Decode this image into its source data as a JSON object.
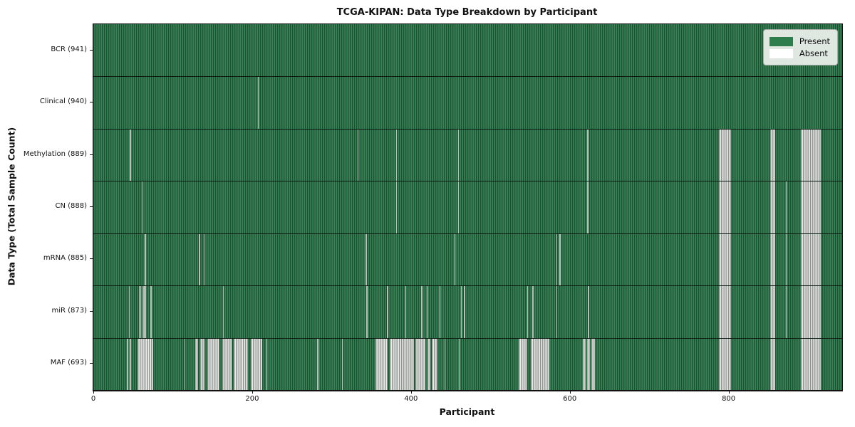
{
  "title": "TCGA-KIPAN: Data Type Breakdown by Participant",
  "colors": {
    "present_green": "#2e7d4c",
    "present_dark_edge": "#1f4e32",
    "absent_white": "#ffffff",
    "absent_gray": "#b4b8b4",
    "legend_background": "#e9eee9",
    "axis_line": "#111111"
  },
  "legend": {
    "present_label": "Present",
    "absent_label": "Absent"
  },
  "chart_data": {
    "type": "heatmap",
    "title": "TCGA-KIPAN: Data Type Breakdown by Participant",
    "xlabel": "Participant",
    "ylabel": "Data Type (Total Sample Count)",
    "legend": [
      "Present",
      "Absent"
    ],
    "legend_position": "upper right",
    "x_range": [
      0,
      943
    ],
    "x_ticks": [
      0,
      200,
      400,
      600,
      800
    ],
    "n_participants": 941,
    "value_encoding": {
      "present": "green",
      "absent": "white"
    },
    "rows": [
      {
        "name": "bcr",
        "label": "BCR (941)",
        "data_type": "BCR",
        "present_count": 941,
        "absent_ranges": []
      },
      {
        "name": "clinical",
        "label": "Clinical (940)",
        "data_type": "Clinical",
        "present_count": 940,
        "absent_ranges": [
          [
            207,
            208
          ]
        ]
      },
      {
        "name": "methylation",
        "label": "Methylation (889)",
        "data_type": "Methylation",
        "present_count": 889,
        "absent_ranges": [
          [
            46,
            47
          ],
          [
            333,
            334
          ],
          [
            381,
            382
          ],
          [
            459,
            460
          ],
          [
            622,
            623
          ],
          [
            788,
            803
          ],
          [
            852,
            859
          ],
          [
            891,
            916
          ]
        ]
      },
      {
        "name": "cn",
        "label": "CN (888)",
        "data_type": "CN",
        "present_count": 888,
        "absent_ranges": [
          [
            61,
            62
          ],
          [
            381,
            382
          ],
          [
            459,
            460
          ],
          [
            622,
            623
          ],
          [
            788,
            803
          ],
          [
            852,
            859
          ],
          [
            872,
            873
          ],
          [
            891,
            916
          ]
        ]
      },
      {
        "name": "mrna",
        "label": "mRNA (885)",
        "data_type": "mRNA",
        "present_count": 885,
        "absent_ranges": [
          [
            65,
            66
          ],
          [
            133,
            134
          ],
          [
            139,
            140
          ],
          [
            343,
            344
          ],
          [
            455,
            456
          ],
          [
            583,
            584
          ],
          [
            587,
            588
          ],
          [
            788,
            803
          ],
          [
            852,
            859
          ],
          [
            872,
            873
          ],
          [
            891,
            916
          ]
        ]
      },
      {
        "name": "mir",
        "label": "miR (873)",
        "data_type": "miR",
        "present_count": 873,
        "absent_ranges": [
          [
            45,
            46
          ],
          [
            57,
            58
          ],
          [
            59,
            60
          ],
          [
            61,
            62
          ],
          [
            63,
            64
          ],
          [
            65,
            66
          ],
          [
            72,
            73
          ],
          [
            163,
            164
          ],
          [
            344,
            345
          ],
          [
            370,
            371
          ],
          [
            393,
            394
          ],
          [
            413,
            414
          ],
          [
            420,
            421
          ],
          [
            436,
            437
          ],
          [
            463,
            464
          ],
          [
            467,
            468
          ],
          [
            546,
            547
          ],
          [
            553,
            554
          ],
          [
            583,
            584
          ],
          [
            623,
            624
          ],
          [
            788,
            803
          ],
          [
            852,
            859
          ],
          [
            872,
            873
          ],
          [
            891,
            916
          ]
        ]
      },
      {
        "name": "maf",
        "label": "MAF (693)",
        "data_type": "MAF",
        "present_count": 693,
        "absent_ranges": [
          [
            42,
            44
          ],
          [
            46,
            48
          ],
          [
            56,
            75
          ],
          [
            115,
            116
          ],
          [
            128,
            132
          ],
          [
            135,
            140
          ],
          [
            144,
            159
          ],
          [
            162,
            174
          ],
          [
            177,
            195
          ],
          [
            198,
            213
          ],
          [
            218,
            219
          ],
          [
            282,
            283
          ],
          [
            313,
            314
          ],
          [
            355,
            371
          ],
          [
            373,
            404
          ],
          [
            406,
            418
          ],
          [
            421,
            424
          ],
          [
            426,
            433
          ],
          [
            442,
            443
          ],
          [
            460,
            461
          ],
          [
            536,
            546
          ],
          [
            551,
            574
          ],
          [
            616,
            620
          ],
          [
            622,
            625
          ],
          [
            627,
            632
          ],
          [
            788,
            803
          ],
          [
            852,
            859
          ],
          [
            891,
            916
          ]
        ]
      }
    ]
  }
}
